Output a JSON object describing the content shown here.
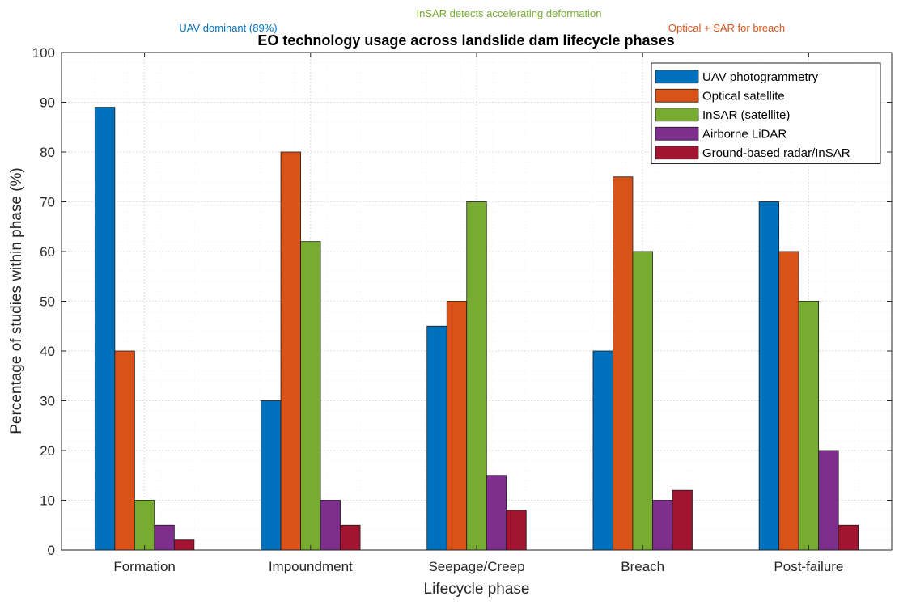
{
  "chart_data": {
    "type": "bar",
    "title": "EO technology usage across landslide dam lifecycle phases",
    "xlabel": "Lifecycle phase",
    "ylabel": "Percentage of studies within phase (%)",
    "ylim": [
      0,
      100
    ],
    "yticks": [
      0,
      10,
      20,
      30,
      40,
      50,
      60,
      70,
      80,
      90,
      100
    ],
    "grid": true,
    "legend_position": "top-right",
    "categories": [
      "Formation",
      "Impoundment",
      "Seepage/Creep",
      "Breach",
      "Post-failure"
    ],
    "series": [
      {
        "name": "UAV photogrammetry",
        "color": "#0072BD",
        "values": [
          89,
          30,
          45,
          40,
          70
        ]
      },
      {
        "name": "Optical satellite",
        "color": "#D95319",
        "values": [
          40,
          80,
          50,
          75,
          60
        ]
      },
      {
        "name": "InSAR (satellite)",
        "color": "#77AC30",
        "values": [
          10,
          62,
          70,
          60,
          50
        ]
      },
      {
        "name": "Airborne LiDAR",
        "color": "#7E2F8E",
        "values": [
          5,
          10,
          15,
          10,
          20
        ]
      },
      {
        "name": "Ground-based radar/InSAR",
        "color": "#A2142F",
        "values": [
          2,
          5,
          8,
          12,
          5
        ]
      }
    ],
    "annotations": [
      {
        "text": "UAV dominant (89%)",
        "color": "#0072BD"
      },
      {
        "text": "InSAR detects accelerating deformation",
        "color": "#77AC30"
      },
      {
        "text": "Optical + SAR for breach",
        "color": "#D95319"
      }
    ]
  }
}
